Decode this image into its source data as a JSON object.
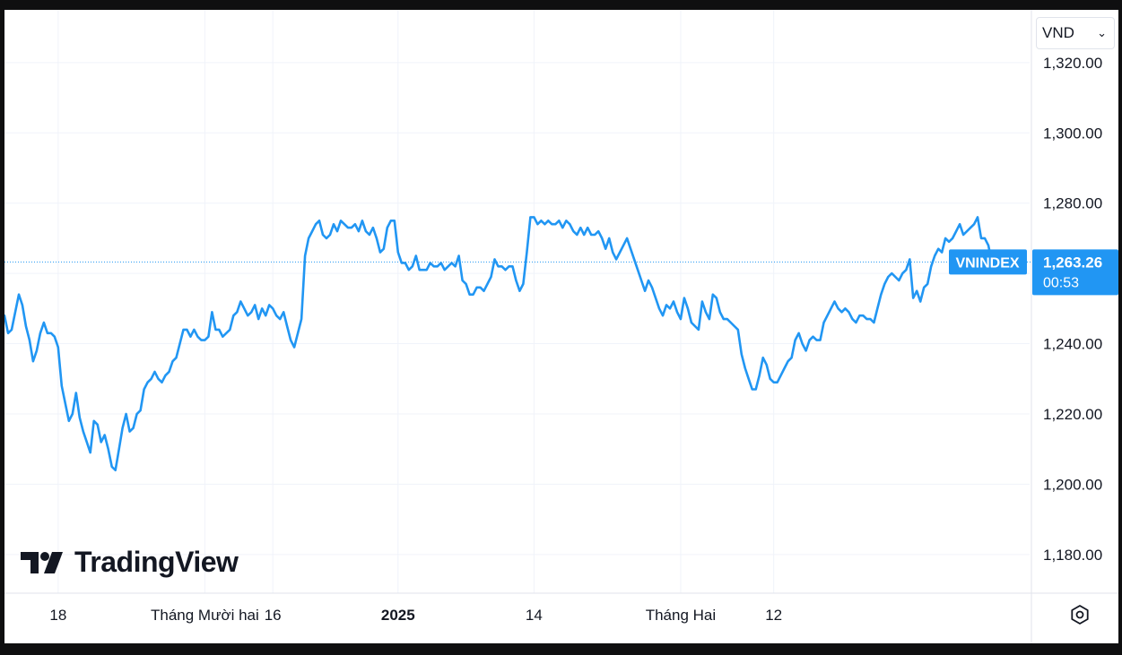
{
  "currency_selector": {
    "label": "VND",
    "chevron_icon": "chevron-down-icon"
  },
  "branding": {
    "name": "TradingView",
    "logo_icon": "tradingview-logo-icon"
  },
  "price_label": {
    "symbol": "VNINDEX",
    "value": "1,263.26",
    "countdown": "00:53",
    "color": "#2196f3"
  },
  "settings_icon": "gear-settings-icon",
  "colors": {
    "line": "#2196f3",
    "grid": "#f0f3fa",
    "axis_text": "#131722",
    "price_line": "#2196f3"
  },
  "chart_data": {
    "type": "line",
    "title": "",
    "series": [
      {
        "name": "VNINDEX",
        "values": [
          1248,
          1243,
          1244,
          1249,
          1254,
          1251,
          1245,
          1241,
          1235,
          1238,
          1243,
          1246,
          1243,
          1243,
          1242,
          1239,
          1228,
          1223,
          1218,
          1220,
          1226,
          1219,
          1215,
          1212,
          1209,
          1218,
          1217,
          1212,
          1214,
          1210,
          1205,
          1204,
          1210,
          1216,
          1220,
          1215,
          1216,
          1220,
          1221,
          1227,
          1229,
          1230,
          1232,
          1230,
          1229,
          1231,
          1232,
          1235,
          1236,
          1240,
          1244,
          1244,
          1242,
          1244,
          1242,
          1241,
          1241,
          1242,
          1249,
          1244,
          1244,
          1242,
          1243,
          1244,
          1248,
          1249,
          1252,
          1250,
          1248,
          1249,
          1251,
          1247,
          1250,
          1248,
          1251,
          1250,
          1248,
          1247,
          1249,
          1245,
          1241,
          1239,
          1243,
          1247,
          1265,
          1270,
          1272,
          1274,
          1275,
          1271,
          1270,
          1271,
          1274,
          1272,
          1275,
          1274,
          1273,
          1273,
          1274,
          1272,
          1275,
          1272,
          1271,
          1273,
          1270,
          1266,
          1267,
          1273,
          1275,
          1275,
          1266,
          1263,
          1263,
          1261,
          1262,
          1265,
          1261,
          1261,
          1261,
          1263,
          1262,
          1262,
          1263,
          1261,
          1262,
          1263,
          1262,
          1265,
          1258,
          1257,
          1254,
          1254,
          1256,
          1256,
          1255,
          1257,
          1259,
          1264,
          1262,
          1262,
          1261,
          1262,
          1262,
          1258,
          1255,
          1257,
          1266,
          1276,
          1276,
          1274,
          1275,
          1274,
          1275,
          1274,
          1274,
          1275,
          1273,
          1275,
          1274,
          1272,
          1271,
          1273,
          1271,
          1273,
          1271,
          1271,
          1272,
          1270,
          1267,
          1270,
          1266,
          1264,
          1266,
          1268,
          1270,
          1267,
          1264,
          1261,
          1258,
          1255,
          1258,
          1256,
          1253,
          1250,
          1248,
          1251,
          1250,
          1252,
          1249,
          1247,
          1253,
          1250,
          1246,
          1245,
          1244,
          1252,
          1249,
          1247,
          1254,
          1253,
          1249,
          1247,
          1247,
          1246,
          1245,
          1244,
          1237,
          1233,
          1230,
          1227,
          1227,
          1231,
          1236,
          1234,
          1230,
          1229,
          1229,
          1231,
          1233,
          1235,
          1236,
          1241,
          1243,
          1240,
          1238,
          1241,
          1242,
          1241,
          1241,
          1246,
          1248,
          1250,
          1252,
          1250,
          1249,
          1250,
          1249,
          1247,
          1246,
          1248,
          1248,
          1247,
          1247,
          1246,
          1250,
          1254,
          1257,
          1259,
          1260,
          1259,
          1258,
          1260,
          1261,
          1264,
          1253,
          1255,
          1252,
          1256,
          1257,
          1262,
          1265,
          1267,
          1266,
          1270,
          1269,
          1270,
          1272,
          1274,
          1271,
          1272,
          1273,
          1274,
          1276,
          1270,
          1270,
          1268,
          1263
        ]
      }
    ],
    "x_tick_labels": [
      "18",
      "Tháng Mười hai",
      "16",
      "2025",
      "14",
      "Tháng Hai",
      "12"
    ],
    "x_tick_index": [
      15,
      56,
      75,
      110,
      148,
      189,
      215
    ],
    "y_ticks": [
      1180,
      1200,
      1220,
      1240,
      1260,
      1280,
      1300,
      1320
    ],
    "y_tick_labels": [
      "1,180.00",
      "1,200.00",
      "1,220.00",
      "1,240.00",
      "1,260.00",
      "1,280.00",
      "1,300.00",
      "1,320.00"
    ],
    "ylim": [
      1169,
      1335
    ],
    "last_value": 1263.26,
    "grid": true,
    "y_axis_side": "right"
  }
}
